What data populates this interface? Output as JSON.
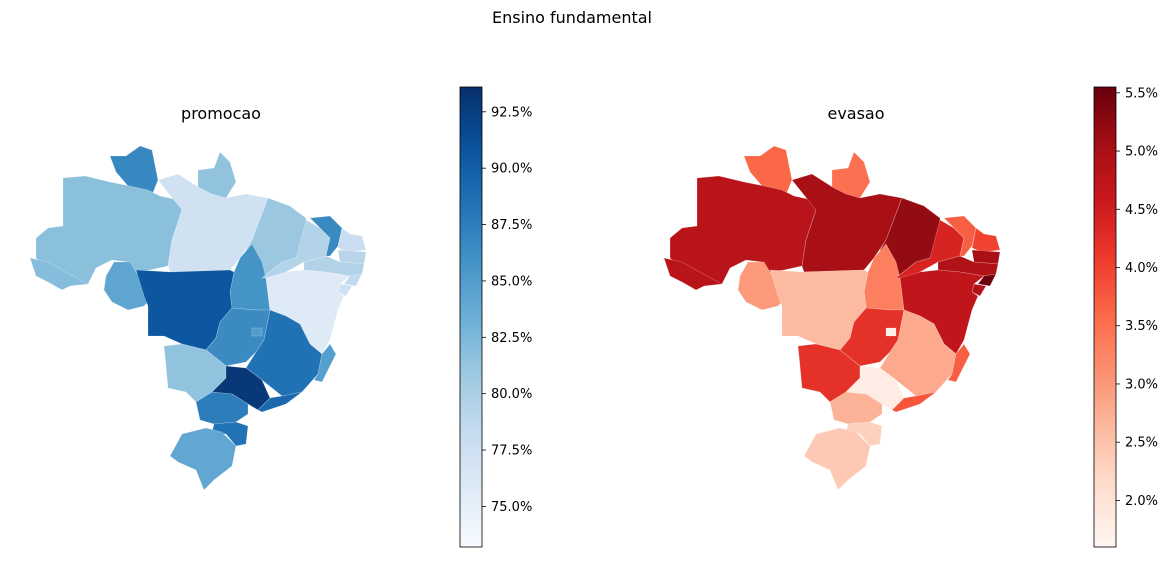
{
  "figure": {
    "title": "Ensino fundamental"
  },
  "panels": [
    {
      "title": "promocao",
      "colormap": "Blues",
      "colorbar": {
        "range": [
          73.2,
          93.6
        ],
        "ticks": [
          {
            "value": 75.0,
            "label": "75.0%"
          },
          {
            "value": 77.5,
            "label": "77.5%"
          },
          {
            "value": 80.0,
            "label": "80.0%"
          },
          {
            "value": 82.5,
            "label": "82.5%"
          },
          {
            "value": 85.0,
            "label": "85.0%"
          },
          {
            "value": 87.5,
            "label": "87.5%"
          },
          {
            "value": 90.0,
            "label": "90.0%"
          },
          {
            "value": 92.5,
            "label": "92.5%"
          }
        ]
      },
      "regions": [
        {
          "id": "RR",
          "value": 86.8
        },
        {
          "id": "AP",
          "value": 81.5
        },
        {
          "id": "AM",
          "value": 81.8
        },
        {
          "id": "AC",
          "value": 82.0
        },
        {
          "id": "RO",
          "value": 84.2
        },
        {
          "id": "PA",
          "value": 77.2
        },
        {
          "id": "MA",
          "value": 81.0
        },
        {
          "id": "TO",
          "value": 85.8
        },
        {
          "id": "PI",
          "value": 79.5
        },
        {
          "id": "CE",
          "value": 86.6
        },
        {
          "id": "RN",
          "value": 77.8
        },
        {
          "id": "PB",
          "value": 79.2
        },
        {
          "id": "PE",
          "value": 79.6
        },
        {
          "id": "AL",
          "value": 78.5
        },
        {
          "id": "SE",
          "value": 77.4
        },
        {
          "id": "BA",
          "value": 75.8
        },
        {
          "id": "MT",
          "value": 90.6
        },
        {
          "id": "GO",
          "value": 86.5
        },
        {
          "id": "DF",
          "value": 85.0
        },
        {
          "id": "MG",
          "value": 88.5
        },
        {
          "id": "ES",
          "value": 84.8
        },
        {
          "id": "MS",
          "value": 81.5
        },
        {
          "id": "SP",
          "value": 93.0
        },
        {
          "id": "RJ",
          "value": 89.2
        },
        {
          "id": "PR",
          "value": 87.6
        },
        {
          "id": "SC",
          "value": 88.4
        },
        {
          "id": "RS",
          "value": 84.0
        }
      ]
    },
    {
      "title": "evasao",
      "colormap": "Reds",
      "colorbar": {
        "range": [
          1.6,
          5.55
        ],
        "ticks": [
          {
            "value": 2.0,
            "label": "2.0%"
          },
          {
            "value": 2.5,
            "label": "2.5%"
          },
          {
            "value": 3.0,
            "label": "3.0%"
          },
          {
            "value": 3.5,
            "label": "3.5%"
          },
          {
            "value": 4.0,
            "label": "4.0%"
          },
          {
            "value": 4.5,
            "label": "4.5%"
          },
          {
            "value": 5.0,
            "label": "5.0%"
          },
          {
            "value": 5.5,
            "label": "5.5%"
          }
        ]
      },
      "regions": [
        {
          "id": "RR",
          "value": 3.6
        },
        {
          "id": "AP",
          "value": 3.5
        },
        {
          "id": "AM",
          "value": 4.8
        },
        {
          "id": "AC",
          "value": 4.8
        },
        {
          "id": "RO",
          "value": 3.0
        },
        {
          "id": "PA",
          "value": 5.0
        },
        {
          "id": "MA",
          "value": 5.2
        },
        {
          "id": "TO",
          "value": 3.3
        },
        {
          "id": "PI",
          "value": 4.4
        },
        {
          "id": "CE",
          "value": 3.7
        },
        {
          "id": "RN",
          "value": 4.0
        },
        {
          "id": "PB",
          "value": 5.0
        },
        {
          "id": "PE",
          "value": 4.9
        },
        {
          "id": "AL",
          "value": 5.5
        },
        {
          "id": "SE",
          "value": 4.9
        },
        {
          "id": "BA",
          "value": 4.7
        },
        {
          "id": "MT",
          "value": 2.6
        },
        {
          "id": "GO",
          "value": 4.2
        },
        {
          "id": "DF",
          "value": 1.7
        },
        {
          "id": "MG",
          "value": 2.8
        },
        {
          "id": "ES",
          "value": 3.7
        },
        {
          "id": "MS",
          "value": 4.2
        },
        {
          "id": "SP",
          "value": 1.8
        },
        {
          "id": "RJ",
          "value": 3.8
        },
        {
          "id": "PR",
          "value": 2.7
        },
        {
          "id": "SC",
          "value": 2.3
        },
        {
          "id": "RS",
          "value": 2.4
        }
      ]
    }
  ]
}
